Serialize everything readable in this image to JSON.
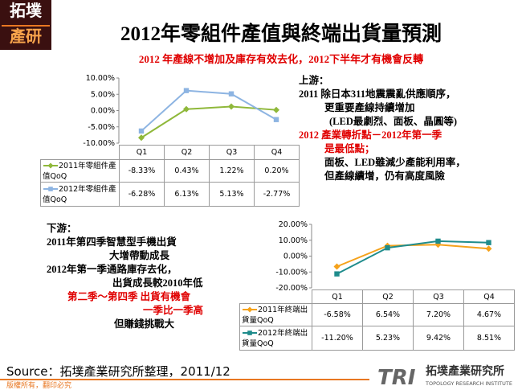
{
  "logo": [
    "拓墣",
    "產研"
  ],
  "title": "2012年零組件產值與終端出貨量預測",
  "subtitle": "2012 年產線不增加及庫存有效去化，2012下半年才有機會反轉",
  "upstream_notes": [
    {
      "text": "上游：",
      "color": "#000000"
    },
    {
      "text": "2011 除日本311地震震亂供應順序，",
      "color": "#000000"
    },
    {
      "text": "更重要產線持續增加",
      "color": "#000000"
    },
    {
      "text": "(LED最劇烈、面板、晶圓等)",
      "color": "#000000"
    },
    {
      "text": "2012 產業轉折點－2012年第一季",
      "color": "#e00000"
    },
    {
      "text": "是最低點；",
      "color": "#e00000"
    },
    {
      "text": "面板、LED雖減少產能利用率，",
      "color": "#000000"
    },
    {
      "text": "但產線續增，仍有高度風險",
      "color": "#000000"
    }
  ],
  "downstream_notes": [
    {
      "text": "下游：",
      "color": "#000000"
    },
    {
      "text": "2011年第四季智慧型手機出貨",
      "color": "#000000"
    },
    {
      "text": "大增帶動成長",
      "color": "#000000"
    },
    {
      "text": "2012年第一季通路庫存去化，",
      "color": "#000000"
    },
    {
      "text": "出貨成長較2010年低",
      "color": "#000000"
    },
    {
      "text": "第二季～第四季 出貨有機會",
      "color": "#e00000"
    },
    {
      "text": "一季比一季高",
      "color": "#e00000"
    },
    {
      "text": "但賺錢挑戰大",
      "color": "#000000"
    }
  ],
  "source": "Source：拓墣產業研究所整理，2011/12",
  "footer": "版權所有，翻印必究",
  "brand": {
    "short": "TRI",
    "name": "拓墣產業研究所",
    "english": "TOPOLOGY RESEARCH INSTITUTE"
  },
  "chart_data": [
    {
      "type": "line",
      "categories": [
        "Q1",
        "Q2",
        "Q3",
        "Q4"
      ],
      "ylim": [
        -10,
        10
      ],
      "yticks": [
        {
          "value": -10,
          "label": "-10.00%"
        },
        {
          "value": -5,
          "label": "-5.00%"
        },
        {
          "value": 0,
          "label": "0.00%"
        },
        {
          "value": 5,
          "label": "5.00%"
        },
        {
          "value": 10,
          "label": "10.00%"
        }
      ],
      "grid": false,
      "series": [
        {
          "name": "2011年零組件產值QoQ",
          "color": "#8fb83a",
          "marker": "diamond",
          "values": [
            -8.33,
            0.43,
            1.22,
            0.2
          ],
          "value_labels": [
            "-8.33%",
            "0.43%",
            "1.22%",
            "0.20%"
          ]
        },
        {
          "name": "2012年零組件產值QoQ",
          "color": "#8db4e2",
          "marker": "square",
          "values": [
            -6.28,
            6.13,
            5.13,
            -2.77
          ],
          "value_labels": [
            "-6.28%",
            "6.13%",
            "5.13%",
            "-2.77%"
          ]
        }
      ]
    },
    {
      "type": "line",
      "categories": [
        "Q1",
        "Q2",
        "Q3",
        "Q4"
      ],
      "ylim": [
        -20,
        20
      ],
      "yticks": [
        {
          "value": -20,
          "label": "-20.00%"
        },
        {
          "value": -10,
          "label": "-10.00%"
        },
        {
          "value": 0,
          "label": "0.00%"
        },
        {
          "value": 10,
          "label": "10.00%"
        },
        {
          "value": 20,
          "label": "20.00%"
        }
      ],
      "grid": false,
      "series": [
        {
          "name": "2011年終端出貨量QoQ",
          "color": "#f5a21b",
          "marker": "diamond",
          "values": [
            -6.58,
            6.54,
            7.2,
            4.67
          ],
          "value_labels": [
            "-6.58%",
            "6.54%",
            "7.20%",
            "4.67%"
          ]
        },
        {
          "name": "2012年終端出貨量QoQ",
          "color": "#1f8c8c",
          "marker": "square",
          "values": [
            -11.2,
            5.23,
            9.42,
            8.51
          ],
          "value_labels": [
            "-11.20%",
            "5.23%",
            "9.42%",
            "8.51%"
          ]
        }
      ]
    }
  ]
}
